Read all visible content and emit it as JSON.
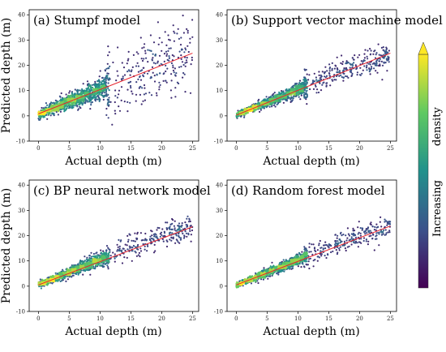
{
  "colors": {
    "point_colormap": [
      "#440154",
      "#3b528b",
      "#21918c",
      "#5ec962",
      "#fde725"
    ],
    "fit_line": "#e8202a",
    "axes": "#000000"
  },
  "colorbar": {
    "label_words": [
      "Increasing",
      "density"
    ],
    "colormap": "viridis",
    "orientation": "vertical",
    "extend": "max"
  },
  "chart_data": [
    {
      "type": "scatter",
      "title": "(a) Stumpf model",
      "xlabel": "Actual depth (m)",
      "ylabel": "Predicted depth (m)",
      "xlim": [
        -1.5,
        26
      ],
      "ylim": [
        -10,
        42
      ],
      "xticks": [
        0,
        5,
        10,
        15,
        20,
        25
      ],
      "yticks": [
        -10,
        0,
        10,
        20,
        30,
        40
      ],
      "color_encoding": "point density",
      "fit_line": {
        "x": [
          0,
          25
        ],
        "y": [
          0.8,
          24.8
        ]
      },
      "scatter_spread": {
        "near": 1.8,
        "far": 6.5,
        "bias": 0.6
      },
      "scatter_profile": "wide",
      "scatter_count": 1400
    },
    {
      "type": "scatter",
      "title": "(b) Support vector machine model",
      "xlabel": "Actual depth (m)",
      "ylabel": "",
      "xlim": [
        -1.5,
        26
      ],
      "ylim": [
        -10,
        42
      ],
      "xticks": [
        0,
        5,
        10,
        15,
        20,
        25
      ],
      "yticks": [
        -10,
        0,
        10,
        20,
        30,
        40
      ],
      "color_encoding": "point density",
      "fit_line": {
        "x": [
          0,
          25
        ],
        "y": [
          0.3,
          24.8
        ]
      },
      "scatter_spread": {
        "near": 1.1,
        "far": 2.6,
        "bias": 0.3
      },
      "scatter_profile": "saturating",
      "scatter_count": 1400
    },
    {
      "type": "scatter",
      "title": "(c) BP neural network model",
      "xlabel": "Actual depth (m)",
      "ylabel": "Predicted depth (m)",
      "xlim": [
        -1.5,
        26
      ],
      "ylim": [
        -10,
        42
      ],
      "xticks": [
        0,
        5,
        10,
        15,
        20,
        25
      ],
      "yticks": [
        -10,
        0,
        10,
        20,
        30,
        40
      ],
      "color_encoding": "point density",
      "fit_line": {
        "x": [
          0,
          25
        ],
        "y": [
          0.5,
          23.5
        ]
      },
      "scatter_spread": {
        "near": 1.2,
        "far": 2.4,
        "bias": 0.5
      },
      "scatter_profile": "saturating",
      "scatter_count": 1400
    },
    {
      "type": "scatter",
      "title": "(d) Random forest model",
      "xlabel": "Actual depth (m)",
      "ylabel": "",
      "xlim": [
        -1.5,
        26
      ],
      "ylim": [
        -10,
        42
      ],
      "xticks": [
        0,
        5,
        10,
        15,
        20,
        25
      ],
      "yticks": [
        -10,
        0,
        10,
        20,
        30,
        40
      ],
      "color_encoding": "point density",
      "fit_line": {
        "x": [
          0,
          25
        ],
        "y": [
          0.5,
          23.8
        ]
      },
      "scatter_spread": {
        "near": 1.0,
        "far": 2.2,
        "bias": 0.3
      },
      "scatter_profile": "saturating",
      "scatter_count": 1400
    }
  ]
}
